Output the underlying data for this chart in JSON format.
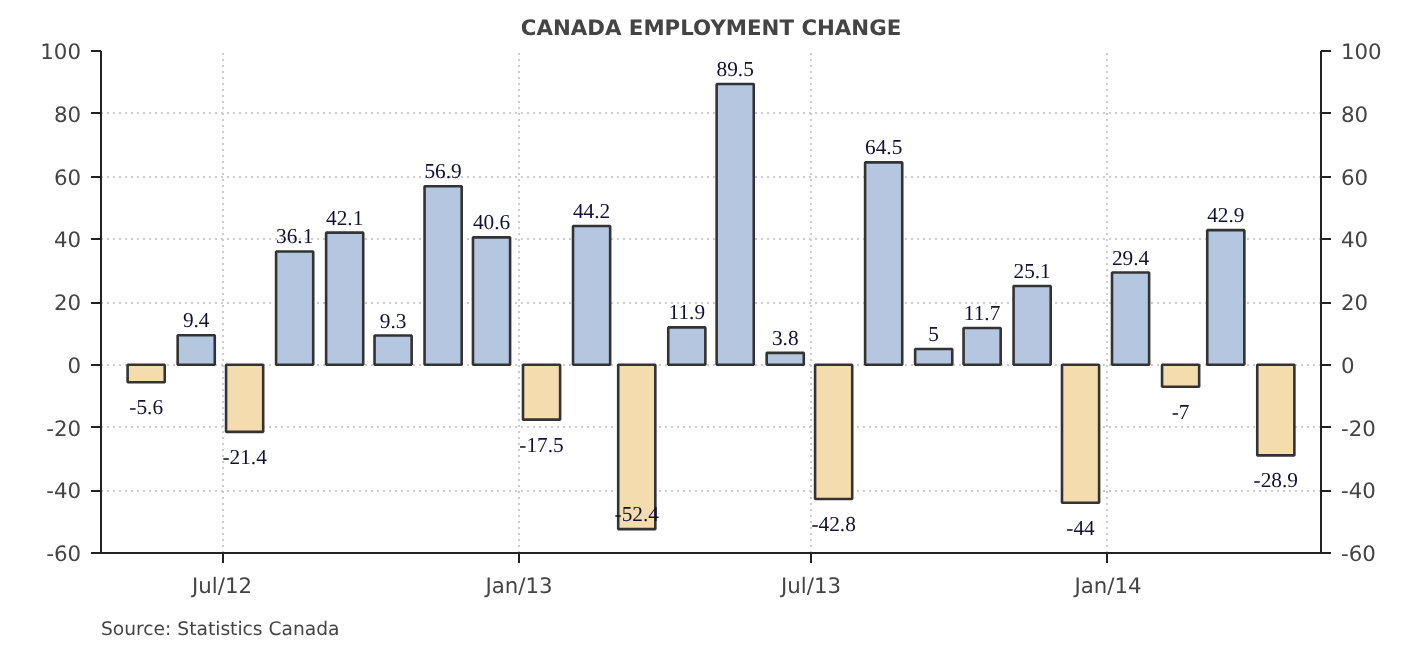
{
  "chart_data": {
    "type": "bar",
    "title": "CANADA EMPLOYMENT CHANGE",
    "x": [
      "2012-05-15",
      "2012-06-15",
      "2012-07-15",
      "2012-08-15",
      "2012-09-15",
      "2012-10-15",
      "2012-11-15",
      "2012-12-15",
      "2013-01-15",
      "2013-02-15",
      "2013-03-15",
      "2013-04-15",
      "2013-05-15",
      "2013-06-15",
      "2013-07-15",
      "2013-08-15",
      "2013-09-15",
      "2013-10-15",
      "2013-11-15",
      "2013-12-15",
      "2014-01-15",
      "2014-02-15",
      "2014-03-15",
      "2014-04-15"
    ],
    "values": [
      -5.6,
      9.4,
      -21.4,
      36.1,
      42.1,
      9.3,
      56.9,
      40.6,
      -17.5,
      44.2,
      -52.4,
      11.9,
      89.5,
      3.8,
      -42.8,
      64.5,
      5,
      11.7,
      25.1,
      -44,
      29.4,
      -7,
      42.9,
      -28.9
    ],
    "colors": [
      "#f5dcae",
      "#b4c6e0",
      "#f5dcae",
      "#b4c6e0",
      "#b4c6e0",
      "#b4c6e0",
      "#b4c6e0",
      "#b4c6e0",
      "#f5dcae",
      "#b4c6e0",
      "#f5dcae",
      "#b4c6e0",
      "#b4c6e0",
      "#b4c6e0",
      "#f5dcae",
      "#b4c6e0",
      "#b4c6e0",
      "#b4c6e0",
      "#b4c6e0",
      "#f5dcae",
      "#b4c6e0",
      "#f5dcae",
      "#b4c6e0",
      "#f5dcae"
    ],
    "data_labels": true,
    "xlim": [
      "2012-04-17",
      "2014-05-13"
    ],
    "xticks": [
      {
        "value": "2012-07-01",
        "label": "Jul/12"
      },
      {
        "value": "2013-01-01",
        "label": "Jan/13"
      },
      {
        "value": "2013-07-01",
        "label": "Jul/13"
      },
      {
        "value": "2014-01-01",
        "label": "Jan/14"
      }
    ],
    "ylim": [
      -60,
      100
    ],
    "yticks": [
      -60,
      -40,
      -20,
      0,
      20,
      40,
      60,
      80,
      100
    ],
    "y2lim": [
      -60,
      100
    ],
    "y2ticks": [
      -60,
      -40,
      -20,
      0,
      20,
      40,
      60,
      80,
      100
    ],
    "grid": true,
    "annotations": [
      "Source: Statistics Canada"
    ]
  }
}
